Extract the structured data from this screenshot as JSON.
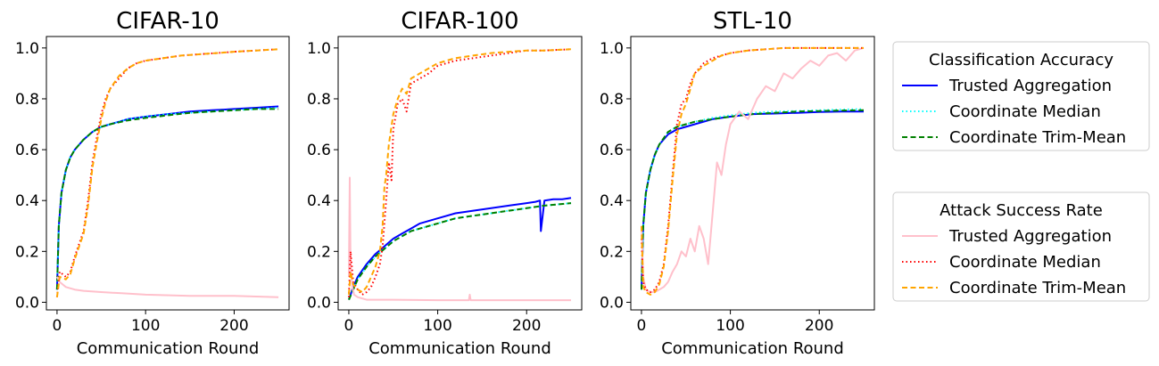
{
  "figure": {
    "legend_placement": "right of plots (two boxes)"
  },
  "chart_data": [
    {
      "type": "line",
      "title": "CIFAR-10",
      "xlabel": "Communication Round",
      "ylabel": "",
      "xlim": [
        -12,
        262
      ],
      "ylim": [
        -0.03,
        1.045
      ],
      "xticks": [
        0,
        100,
        200
      ],
      "yticks": [
        0.0,
        0.2,
        0.4,
        0.6,
        0.8,
        1.0
      ],
      "grid": false,
      "series": [
        {
          "group": "ca",
          "name": "Trusted Aggregation",
          "color": "#0000ff",
          "dash": "solid",
          "x": [
            0,
            2,
            5,
            10,
            15,
            20,
            30,
            40,
            50,
            60,
            80,
            100,
            125,
            150,
            175,
            200,
            225,
            250
          ],
          "y": [
            0.05,
            0.3,
            0.43,
            0.52,
            0.57,
            0.6,
            0.64,
            0.67,
            0.69,
            0.7,
            0.72,
            0.73,
            0.74,
            0.75,
            0.755,
            0.76,
            0.765,
            0.77
          ]
        },
        {
          "group": "ca",
          "name": "Coordinate Median",
          "color": "#00ffff",
          "dash": "dotted",
          "x": [
            0,
            2,
            5,
            10,
            15,
            20,
            30,
            40,
            50,
            60,
            80,
            100,
            125,
            150,
            175,
            200,
            225,
            250
          ],
          "y": [
            0.05,
            0.3,
            0.43,
            0.52,
            0.57,
            0.6,
            0.64,
            0.67,
            0.69,
            0.7,
            0.72,
            0.73,
            0.74,
            0.745,
            0.75,
            0.755,
            0.76,
            0.765
          ]
        },
        {
          "group": "ca",
          "name": "Coordinate Trim-Mean",
          "color": "#008000",
          "dash": "dashed",
          "x": [
            0,
            2,
            5,
            10,
            15,
            20,
            30,
            40,
            50,
            60,
            80,
            100,
            125,
            150,
            175,
            200,
            225,
            250
          ],
          "y": [
            0.05,
            0.3,
            0.43,
            0.52,
            0.57,
            0.6,
            0.64,
            0.67,
            0.69,
            0.7,
            0.715,
            0.725,
            0.735,
            0.745,
            0.75,
            0.755,
            0.76,
            0.76
          ]
        },
        {
          "group": "asr",
          "name": "Trusted Aggregation",
          "color": "#ffc0cb",
          "dash": "solid",
          "x": [
            0,
            3,
            10,
            20,
            30,
            50,
            75,
            100,
            150,
            200,
            250
          ],
          "y": [
            0.1,
            0.08,
            0.06,
            0.05,
            0.045,
            0.04,
            0.035,
            0.03,
            0.025,
            0.025,
            0.02
          ]
        },
        {
          "group": "asr",
          "name": "Coordinate Median",
          "color": "#ff0000",
          "dash": "dotted",
          "x": [
            0,
            3,
            10,
            15,
            20,
            25,
            30,
            35,
            40,
            45,
            50,
            55,
            60,
            70,
            80,
            90,
            100,
            120,
            140,
            160,
            180,
            200,
            225,
            250
          ],
          "y": [
            0.02,
            0.12,
            0.1,
            0.12,
            0.18,
            0.23,
            0.28,
            0.4,
            0.55,
            0.65,
            0.74,
            0.8,
            0.84,
            0.88,
            0.92,
            0.94,
            0.95,
            0.96,
            0.97,
            0.975,
            0.98,
            0.985,
            0.99,
            0.995
          ]
        },
        {
          "group": "asr",
          "name": "Coordinate Trim-Mean",
          "color": "#ffa500",
          "dash": "dashed",
          "x": [
            0,
            3,
            10,
            15,
            20,
            25,
            30,
            35,
            40,
            45,
            50,
            55,
            60,
            70,
            80,
            90,
            100,
            120,
            140,
            160,
            180,
            200,
            225,
            250
          ],
          "y": [
            0.02,
            0.1,
            0.09,
            0.11,
            0.17,
            0.22,
            0.27,
            0.38,
            0.53,
            0.63,
            0.72,
            0.79,
            0.84,
            0.89,
            0.92,
            0.94,
            0.95,
            0.96,
            0.97,
            0.975,
            0.98,
            0.985,
            0.99,
            0.995
          ]
        }
      ]
    },
    {
      "type": "line",
      "title": "CIFAR-100",
      "xlabel": "Communication Round",
      "ylabel": "",
      "xlim": [
        -12,
        262
      ],
      "ylim": [
        -0.03,
        1.045
      ],
      "xticks": [
        0,
        100,
        200
      ],
      "yticks": [
        0.0,
        0.2,
        0.4,
        0.6,
        0.8,
        1.0
      ],
      "grid": false,
      "series": [
        {
          "group": "ca",
          "name": "Trusted Aggregation",
          "color": "#0000ff",
          "dash": "solid",
          "x": [
            0,
            5,
            10,
            20,
            30,
            40,
            50,
            60,
            70,
            80,
            100,
            120,
            140,
            160,
            180,
            200,
            210,
            215,
            216,
            220,
            230,
            240,
            250
          ],
          "y": [
            0.01,
            0.06,
            0.1,
            0.15,
            0.19,
            0.22,
            0.25,
            0.27,
            0.29,
            0.31,
            0.33,
            0.35,
            0.36,
            0.37,
            0.38,
            0.39,
            0.395,
            0.4,
            0.28,
            0.4,
            0.405,
            0.405,
            0.41
          ]
        },
        {
          "group": "ca",
          "name": "Coordinate Median",
          "color": "#00ffff",
          "dash": "dotted",
          "x": [
            0,
            5,
            10,
            20,
            30,
            40,
            50,
            60,
            70,
            80,
            100,
            120,
            140,
            160,
            180,
            200,
            220,
            250
          ],
          "y": [
            0.01,
            0.05,
            0.09,
            0.14,
            0.18,
            0.21,
            0.24,
            0.26,
            0.28,
            0.29,
            0.31,
            0.33,
            0.34,
            0.35,
            0.36,
            0.37,
            0.38,
            0.39
          ]
        },
        {
          "group": "ca",
          "name": "Coordinate Trim-Mean",
          "color": "#008000",
          "dash": "dashed",
          "x": [
            0,
            5,
            10,
            20,
            30,
            40,
            50,
            60,
            70,
            80,
            100,
            120,
            140,
            160,
            180,
            200,
            220,
            250
          ],
          "y": [
            0.01,
            0.05,
            0.09,
            0.14,
            0.18,
            0.21,
            0.24,
            0.26,
            0.28,
            0.29,
            0.31,
            0.33,
            0.34,
            0.35,
            0.36,
            0.37,
            0.38,
            0.39
          ]
        },
        {
          "group": "asr",
          "name": "Trusted Aggregation",
          "color": "#ffc0cb",
          "dash": "solid",
          "x": [
            0,
            1,
            2,
            4,
            6,
            10,
            20,
            30,
            50,
            100,
            135,
            136,
            137,
            150,
            200,
            250
          ],
          "y": [
            0.1,
            0.49,
            0.15,
            0.06,
            0.03,
            0.02,
            0.01,
            0.01,
            0.01,
            0.008,
            0.008,
            0.03,
            0.008,
            0.008,
            0.008,
            0.008
          ]
        },
        {
          "group": "asr",
          "name": "Coordinate Median",
          "color": "#ff0000",
          "dash": "dotted",
          "x": [
            0,
            2,
            5,
            10,
            15,
            20,
            25,
            30,
            35,
            38,
            42,
            45,
            48,
            50,
            55,
            60,
            65,
            70,
            80,
            90,
            100,
            110,
            120,
            140,
            160,
            180,
            200,
            220,
            250
          ],
          "y": [
            0.02,
            0.2,
            0.08,
            0.05,
            0.03,
            0.04,
            0.06,
            0.1,
            0.15,
            0.22,
            0.4,
            0.55,
            0.48,
            0.68,
            0.78,
            0.8,
            0.75,
            0.86,
            0.88,
            0.9,
            0.93,
            0.94,
            0.95,
            0.96,
            0.97,
            0.98,
            0.99,
            0.99,
            0.995
          ]
        },
        {
          "group": "asr",
          "name": "Coordinate Trim-Mean",
          "color": "#ffa500",
          "dash": "dashed",
          "x": [
            0,
            2,
            5,
            10,
            15,
            20,
            25,
            30,
            35,
            38,
            40,
            42,
            45,
            50,
            55,
            60,
            65,
            70,
            80,
            90,
            100,
            110,
            120,
            140,
            160,
            180,
            200,
            220,
            250
          ],
          "y": [
            0.03,
            0.12,
            0.07,
            0.05,
            0.04,
            0.06,
            0.1,
            0.14,
            0.2,
            0.3,
            0.45,
            0.5,
            0.62,
            0.74,
            0.8,
            0.84,
            0.82,
            0.88,
            0.9,
            0.92,
            0.94,
            0.95,
            0.96,
            0.97,
            0.98,
            0.985,
            0.99,
            0.99,
            0.995
          ]
        }
      ]
    },
    {
      "type": "line",
      "title": "STL-10",
      "xlabel": "Communication Round",
      "ylabel": "",
      "xlim": [
        -12,
        262
      ],
      "ylim": [
        -0.03,
        1.045
      ],
      "xticks": [
        0,
        100,
        200
      ],
      "yticks": [
        0.0,
        0.2,
        0.4,
        0.6,
        0.8,
        1.0
      ],
      "grid": false,
      "series": [
        {
          "group": "ca",
          "name": "Trusted Aggregation",
          "color": "#0000ff",
          "dash": "solid",
          "x": [
            0,
            2,
            5,
            10,
            15,
            20,
            30,
            40,
            50,
            60,
            80,
            100,
            125,
            150,
            175,
            200,
            225,
            250
          ],
          "y": [
            0.05,
            0.3,
            0.43,
            0.52,
            0.58,
            0.62,
            0.66,
            0.68,
            0.69,
            0.7,
            0.72,
            0.73,
            0.74,
            0.742,
            0.745,
            0.748,
            0.75,
            0.75
          ]
        },
        {
          "group": "ca",
          "name": "Coordinate Median",
          "color": "#00ffff",
          "dash": "dotted",
          "x": [
            0,
            2,
            5,
            10,
            15,
            20,
            30,
            40,
            50,
            60,
            80,
            100,
            125,
            150,
            175,
            200,
            225,
            250
          ],
          "y": [
            0.05,
            0.3,
            0.43,
            0.52,
            0.58,
            0.62,
            0.67,
            0.69,
            0.7,
            0.71,
            0.725,
            0.735,
            0.745,
            0.75,
            0.752,
            0.755,
            0.758,
            0.76
          ]
        },
        {
          "group": "ca",
          "name": "Coordinate Trim-Mean",
          "color": "#008000",
          "dash": "dashed",
          "x": [
            0,
            2,
            5,
            10,
            15,
            20,
            30,
            40,
            50,
            60,
            80,
            100,
            125,
            150,
            175,
            200,
            225,
            250
          ],
          "y": [
            0.05,
            0.3,
            0.43,
            0.52,
            0.58,
            0.62,
            0.67,
            0.69,
            0.7,
            0.71,
            0.72,
            0.73,
            0.74,
            0.745,
            0.75,
            0.752,
            0.754,
            0.755
          ]
        },
        {
          "group": "asr",
          "name": "Trusted Aggregation",
          "color": "#ffc0cb",
          "dash": "solid",
          "x": [
            0,
            2,
            5,
            10,
            15,
            20,
            25,
            30,
            35,
            40,
            45,
            50,
            55,
            60,
            65,
            70,
            75,
            80,
            85,
            90,
            95,
            100,
            110,
            120,
            130,
            140,
            150,
            160,
            170,
            180,
            190,
            200,
            210,
            220,
            230,
            240,
            250
          ],
          "y": [
            0.3,
            0.1,
            0.05,
            0.04,
            0.04,
            0.05,
            0.06,
            0.08,
            0.12,
            0.15,
            0.2,
            0.18,
            0.25,
            0.2,
            0.3,
            0.25,
            0.15,
            0.35,
            0.55,
            0.5,
            0.62,
            0.7,
            0.75,
            0.72,
            0.8,
            0.85,
            0.83,
            0.9,
            0.88,
            0.92,
            0.95,
            0.93,
            0.97,
            0.98,
            0.95,
            0.99,
            1.0
          ]
        },
        {
          "group": "asr",
          "name": "Coordinate Median",
          "color": "#ff0000",
          "dash": "dotted",
          "x": [
            0,
            2,
            5,
            10,
            15,
            20,
            25,
            30,
            35,
            40,
            45,
            50,
            55,
            60,
            70,
            80,
            90,
            100,
            120,
            140,
            160,
            180,
            200,
            220,
            250
          ],
          "y": [
            0.25,
            0.08,
            0.05,
            0.04,
            0.05,
            0.08,
            0.15,
            0.3,
            0.5,
            0.7,
            0.78,
            0.8,
            0.86,
            0.9,
            0.94,
            0.96,
            0.97,
            0.98,
            0.99,
            0.995,
            1.0,
            1.0,
            1.0,
            1.0,
            1.0
          ]
        },
        {
          "group": "asr",
          "name": "Coordinate Trim-Mean",
          "color": "#ffa500",
          "dash": "dashed",
          "x": [
            0,
            2,
            5,
            10,
            15,
            20,
            25,
            30,
            35,
            40,
            45,
            50,
            55,
            60,
            70,
            80,
            90,
            100,
            120,
            140,
            160,
            180,
            200,
            220,
            250
          ],
          "y": [
            0.3,
            0.06,
            0.04,
            0.03,
            0.04,
            0.07,
            0.14,
            0.28,
            0.48,
            0.66,
            0.74,
            0.78,
            0.84,
            0.9,
            0.93,
            0.95,
            0.97,
            0.98,
            0.99,
            0.995,
            1.0,
            1.0,
            1.0,
            1.0,
            1.0
          ]
        }
      ]
    }
  ],
  "legends": [
    {
      "title": "Classification Accuracy",
      "entries": [
        {
          "label": "Trusted Aggregation",
          "color": "#0000ff",
          "dash": "solid"
        },
        {
          "label": "Coordinate Median",
          "color": "#00ffff",
          "dash": "dotted"
        },
        {
          "label": "Coordinate Trim-Mean",
          "color": "#008000",
          "dash": "dashed"
        }
      ]
    },
    {
      "title": "Attack Success Rate",
      "entries": [
        {
          "label": "Trusted Aggregation",
          "color": "#ffc0cb",
          "dash": "solid"
        },
        {
          "label": "Coordinate Median",
          "color": "#ff0000",
          "dash": "dotted"
        },
        {
          "label": "Coordinate Trim-Mean",
          "color": "#ffa500",
          "dash": "dashed"
        }
      ]
    }
  ]
}
